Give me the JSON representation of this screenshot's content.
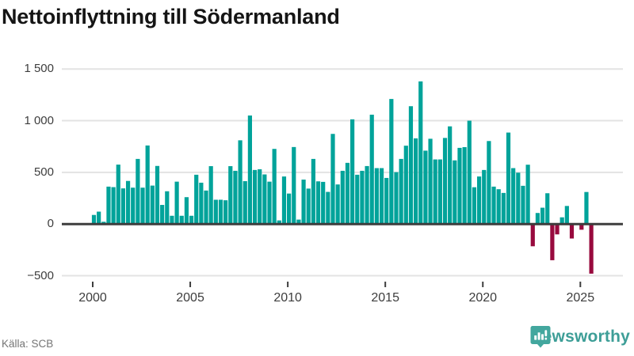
{
  "title": "Nettoinflyttning till Södermanland",
  "source_label": "Källa: SCB",
  "brand": {
    "name": "Newsworthy",
    "icon": "newsworthy-speech-bubble-bar-chart-icon"
  },
  "colors": {
    "positive_bar": "#00a39a",
    "negative_bar": "#980a3e",
    "gridline": "#e3e3e3",
    "zero_line": "#3d3d3d",
    "axis_text": "#3d3d3d",
    "title_text": "#151515",
    "source_text": "#757575",
    "brand_icon": "#43a79e",
    "brand_text": "#3d9e97"
  },
  "chart_data": {
    "type": "bar",
    "title": "Nettoinflyttning till Södermanland",
    "frequency": "quarterly",
    "first_period": "2000 Q1",
    "last_period": "2025 Q3",
    "ylim": [
      -500,
      1500
    ],
    "grid": true,
    "yticks": [
      {
        "label": "1 500",
        "value": 1500
      },
      {
        "label": "1 000",
        "value": 1000
      },
      {
        "label": "500",
        "value": 500
      },
      {
        "label": "0",
        "value": 0
      },
      {
        "label": "−500",
        "value": -500
      }
    ],
    "xticks": [
      2000,
      2005,
      2010,
      2015,
      2020,
      2025
    ],
    "series": [
      {
        "year": 2000,
        "values": [
          88,
          120,
          22,
          362
        ]
      },
      {
        "year": 2001,
        "values": [
          357,
          575,
          345,
          417
        ]
      },
      {
        "year": 2002,
        "values": [
          352,
          630,
          352,
          760
        ]
      },
      {
        "year": 2003,
        "values": [
          372,
          562,
          185,
          317
        ]
      },
      {
        "year": 2004,
        "values": [
          80,
          410,
          80,
          260
        ]
      },
      {
        "year": 2005,
        "values": [
          80,
          477,
          400,
          324
        ]
      },
      {
        "year": 2006,
        "values": [
          560,
          235,
          235,
          230
        ]
      },
      {
        "year": 2007,
        "values": [
          560,
          515,
          810,
          415
        ]
      },
      {
        "year": 2008,
        "values": [
          1050,
          523,
          530,
          480
        ]
      },
      {
        "year": 2009,
        "values": [
          410,
          727,
          35,
          460
        ]
      },
      {
        "year": 2010,
        "values": [
          295,
          745,
          43,
          430
        ]
      },
      {
        "year": 2011,
        "values": [
          343,
          630,
          413,
          408
        ]
      },
      {
        "year": 2012,
        "values": [
          311,
          872,
          383,
          515
        ]
      },
      {
        "year": 2013,
        "values": [
          592,
          1013,
          477,
          515
        ]
      },
      {
        "year": 2014,
        "values": [
          561,
          1058,
          541,
          541
        ]
      },
      {
        "year": 2015,
        "values": [
          446,
          1210,
          502,
          630
        ]
      },
      {
        "year": 2016,
        "values": [
          758,
          1140,
          829,
          1380
        ]
      },
      {
        "year": 2017,
        "values": [
          710,
          825,
          625,
          625
        ]
      },
      {
        "year": 2018,
        "values": [
          833,
          945,
          616,
          737
        ]
      },
      {
        "year": 2019,
        "values": [
          744,
          1000,
          356,
          460
        ]
      },
      {
        "year": 2020,
        "values": [
          523,
          803,
          362,
          337
        ]
      },
      {
        "year": 2021,
        "values": [
          301,
          885,
          541,
          497
        ]
      },
      {
        "year": 2022,
        "values": [
          370,
          574,
          -215,
          107
        ]
      },
      {
        "year": 2023,
        "values": [
          158,
          298,
          -350,
          -100
        ]
      },
      {
        "year": 2024,
        "values": [
          65,
          175,
          -140,
          0
        ]
      },
      {
        "year": 2025,
        "values": [
          -55,
          310,
          -480
        ]
      }
    ]
  }
}
